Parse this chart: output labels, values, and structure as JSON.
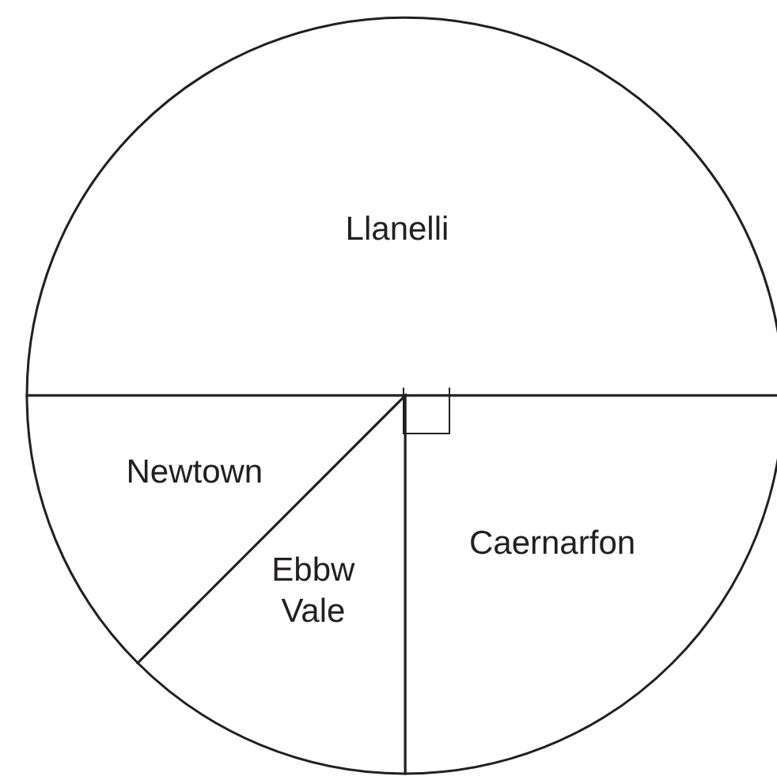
{
  "chart_data": {
    "type": "pie",
    "categories": [
      "Llanelli",
      "Caernarfon",
      "Ebbw Vale",
      "Newtown"
    ],
    "values": [
      50,
      25,
      12.5,
      12.5
    ],
    "colors": [
      "#ffffff",
      "#ffffff",
      "#ffffff",
      "#ffffff"
    ]
  }
}
